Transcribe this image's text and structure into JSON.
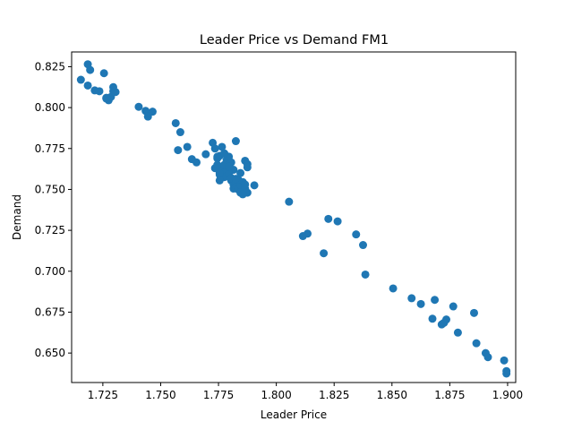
{
  "chart_data": {
    "type": "scatter",
    "title": "Leader Price vs Demand FM1",
    "xlabel": "Leader Price",
    "ylabel": "Demand",
    "xlim": [
      1.7115,
      1.9035
    ],
    "ylim": [
      0.632,
      0.834
    ],
    "xticks": [
      "1.725",
      "1.750",
      "1.775",
      "1.800",
      "1.825",
      "1.850",
      "1.875",
      "1.900"
    ],
    "yticks": [
      "0.650",
      "0.675",
      "0.700",
      "0.725",
      "0.750",
      "0.775",
      "0.800",
      "0.825"
    ],
    "grid": false,
    "marker_color": "#1f77b4",
    "x": [
      1.7185,
      1.7195,
      1.7155,
      1.7185,
      1.7215,
      1.7235,
      1.7255,
      1.7265,
      1.7275,
      1.7285,
      1.7295,
      1.7305,
      1.7295,
      1.7265,
      1.7405,
      1.7435,
      1.7465,
      1.7445,
      1.7565,
      1.7585,
      1.7575,
      1.7615,
      1.7635,
      1.7655,
      1.7695,
      1.7725,
      1.7735,
      1.7745,
      1.7755,
      1.7765,
      1.7775,
      1.7785,
      1.7795,
      1.7805,
      1.7815,
      1.7825,
      1.7835,
      1.7845,
      1.7855,
      1.7865,
      1.7875,
      1.7735,
      1.7745,
      1.7755,
      1.7765,
      1.7775,
      1.7785,
      1.7795,
      1.7805,
      1.7815,
      1.7825,
      1.7835,
      1.7845,
      1.7855,
      1.7865,
      1.7875,
      1.7765,
      1.7775,
      1.7785,
      1.7745,
      1.7755,
      1.7795,
      1.7805,
      1.7815,
      1.7825,
      1.7835,
      1.7845,
      1.7855,
      1.7865,
      1.7755,
      1.7775,
      1.7795,
      1.7835,
      1.7865,
      1.7875,
      1.7905,
      1.7845,
      1.7855,
      1.7825,
      1.8055,
      1.8115,
      1.8135,
      1.8205,
      1.8225,
      1.8265,
      1.8345,
      1.8375,
      1.8385,
      1.8505,
      1.8585,
      1.8625,
      1.8685,
      1.8675,
      1.8715,
      1.8735,
      1.8725,
      1.8765,
      1.8785,
      1.8855,
      1.8865,
      1.8905,
      1.8915,
      1.8985,
      1.8995,
      1.8995
    ],
    "y": [
      0.8265,
      0.823,
      0.817,
      0.8135,
      0.8105,
      0.81,
      0.821,
      0.8055,
      0.8045,
      0.8065,
      0.81,
      0.8095,
      0.8125,
      0.806,
      0.8005,
      0.798,
      0.7975,
      0.7945,
      0.7905,
      0.785,
      0.774,
      0.776,
      0.7685,
      0.7665,
      0.7715,
      0.7785,
      0.775,
      0.769,
      0.7705,
      0.776,
      0.772,
      0.768,
      0.77,
      0.7665,
      0.762,
      0.7795,
      0.756,
      0.76,
      0.7545,
      0.7675,
      0.7655,
      0.763,
      0.765,
      0.759,
      0.7625,
      0.7575,
      0.762,
      0.76,
      0.7555,
      0.753,
      0.7545,
      0.752,
      0.751,
      0.7495,
      0.749,
      0.748,
      0.761,
      0.765,
      0.758,
      0.77,
      0.7555,
      0.7595,
      0.757,
      0.7505,
      0.7515,
      0.75,
      0.7525,
      0.7475,
      0.7505,
      0.76,
      0.772,
      0.764,
      0.756,
      0.753,
      0.7635,
      0.7525,
      0.748,
      0.747,
      0.7565,
      0.7425,
      0.7215,
      0.723,
      0.711,
      0.732,
      0.7305,
      0.7225,
      0.716,
      0.698,
      0.6895,
      0.6835,
      0.68,
      0.6825,
      0.671,
      0.6675,
      0.6705,
      0.6685,
      0.6785,
      0.6625,
      0.6745,
      0.656,
      0.65,
      0.6475,
      0.6455,
      0.639,
      0.6375
    ]
  }
}
